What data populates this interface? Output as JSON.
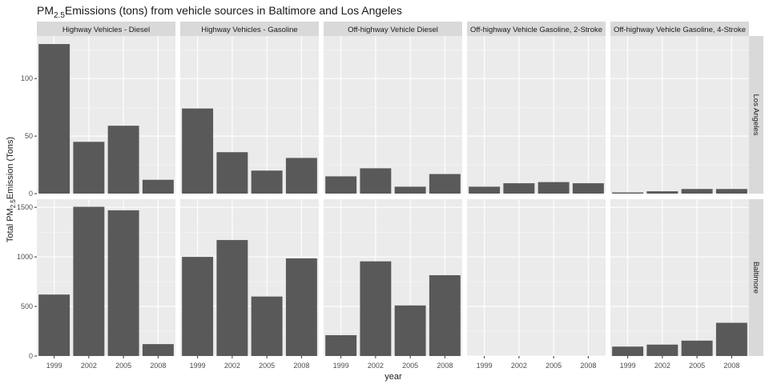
{
  "chart_data": {
    "type": "bar",
    "title": {
      "prefix": "PM",
      "subscript": "2.5",
      "suffix": "Emissions (tons) from vehicle sources in Baltimore and Los Angeles"
    },
    "xlabel": "year",
    "ylabel": {
      "prefix": "Total PM",
      "subscript": "2.5",
      "suffix": "Emission (Tons)"
    },
    "categories": [
      "1999",
      "2002",
      "2005",
      "2008"
    ],
    "facet_columns": [
      "Highway Vehicles - Diesel",
      "Highway Vehicles - Gasoline",
      "Off-highway Vehicle Diesel",
      "Off-highway Vehicle Gasoline, 2-Stroke",
      "Off-highway Vehicle Gasoline, 4-Stroke"
    ],
    "facet_rows": [
      {
        "name": "Los Angeles",
        "ylim": [
          0,
          137
        ],
        "yticks": [
          0,
          50,
          100
        ],
        "values": [
          [
            130,
            45,
            59,
            12
          ],
          [
            74,
            36,
            20,
            31
          ],
          [
            15,
            22,
            6,
            17
          ],
          [
            6,
            9,
            10,
            9
          ],
          [
            1,
            2,
            4,
            4
          ]
        ]
      },
      {
        "name": "Baltimore",
        "ylim": [
          0,
          1582
        ],
        "yticks": [
          0,
          500,
          1000,
          1500
        ],
        "values": [
          [
            620,
            1505,
            1470,
            120
          ],
          [
            1000,
            1170,
            600,
            985
          ],
          [
            210,
            955,
            510,
            815
          ],
          [
            0,
            0,
            0,
            0
          ],
          [
            95,
            115,
            155,
            335
          ]
        ]
      }
    ],
    "colors": {
      "bar": "#595959",
      "panel_background": "#ebebeb",
      "strip_background": "#d9d9d9",
      "grid": "#ffffff",
      "text": "#1a1a1a",
      "axis_text": "#4d4d4d"
    },
    "grid": true,
    "legend": "none"
  }
}
